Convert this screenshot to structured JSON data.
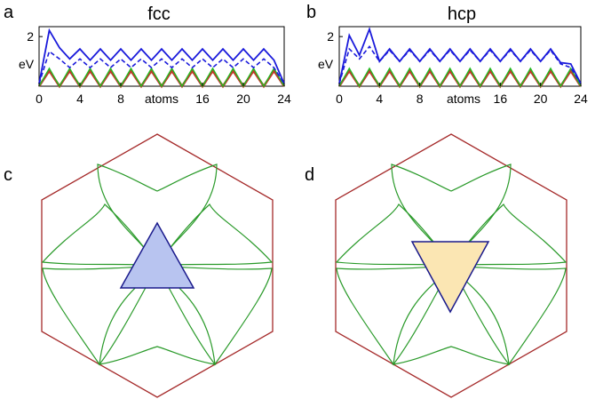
{
  "figure": {
    "panels": {
      "a": {
        "letter": "a"
      },
      "b": {
        "letter": "b"
      },
      "c": {
        "letter": "c"
      },
      "d": {
        "letter": "d"
      }
    }
  },
  "chart_data": [
    {
      "type": "line",
      "panel": "a",
      "title": "fcc",
      "xlabel": "atoms",
      "ylabel": "eV",
      "xlim": [
        0,
        24
      ],
      "ylim": [
        0,
        2.4
      ],
      "x_ticks": [
        "0",
        "4",
        "8",
        "16",
        "20",
        "24"
      ],
      "x_tick_values": [
        0,
        4,
        8,
        16,
        20,
        24
      ],
      "y_ticks": [
        "2"
      ],
      "y_tick_values": [
        2
      ],
      "colors": {
        "blue": "#1a1adb",
        "green": "#22bb22",
        "red": "#c0392b",
        "orange": "#d35400"
      },
      "series": [
        {
          "style": "blue-solid",
          "x": [
            0,
            1,
            2,
            3,
            4,
            5,
            6,
            7,
            8,
            9,
            10,
            11,
            12,
            13,
            14,
            15,
            16,
            17,
            18,
            19,
            20,
            21,
            22,
            23,
            24
          ],
          "values": [
            0.1,
            2.25,
            1.55,
            1.1,
            1.5,
            1.05,
            1.5,
            1.05,
            1.5,
            1.05,
            1.5,
            1.05,
            1.5,
            1.05,
            1.5,
            1.05,
            1.5,
            1.05,
            1.5,
            1.05,
            1.5,
            1.05,
            1.5,
            1.05,
            0.1
          ]
        },
        {
          "style": "blue-dashed",
          "x": [
            0,
            1,
            2,
            3,
            4,
            5,
            6,
            7,
            8,
            9,
            10,
            11,
            12,
            13,
            14,
            15,
            16,
            17,
            18,
            19,
            20,
            21,
            22,
            23,
            24
          ],
          "values": [
            0.1,
            1.4,
            1.1,
            0.75,
            1.1,
            0.75,
            1.1,
            0.75,
            1.1,
            0.75,
            1.1,
            0.75,
            1.1,
            0.75,
            1.1,
            0.75,
            1.1,
            0.75,
            1.1,
            0.75,
            1.1,
            0.75,
            1.1,
            0.75,
            0.1
          ]
        },
        {
          "style": "green",
          "x": [
            0,
            1,
            2,
            3,
            4,
            5,
            6,
            7,
            8,
            9,
            10,
            11,
            12,
            13,
            14,
            15,
            16,
            17,
            18,
            19,
            20,
            21,
            22,
            23,
            24
          ],
          "values": [
            0,
            0.72,
            0,
            0.72,
            0,
            0.72,
            0,
            0.72,
            0,
            0.72,
            0,
            0.72,
            0,
            0.72,
            0,
            0.72,
            0,
            0.72,
            0,
            0.72,
            0,
            0.72,
            0,
            0.72,
            0
          ]
        },
        {
          "style": "red",
          "x": [
            0,
            1,
            2,
            3,
            4,
            5,
            6,
            7,
            8,
            9,
            10,
            11,
            12,
            13,
            14,
            15,
            16,
            17,
            18,
            19,
            20,
            21,
            22,
            23,
            24
          ],
          "values": [
            0,
            0.62,
            0,
            0.62,
            0,
            0.62,
            0,
            0.62,
            0,
            0.62,
            0,
            0.62,
            0,
            0.62,
            0,
            0.62,
            0,
            0.62,
            0,
            0.62,
            0,
            0.62,
            0,
            0.62,
            0
          ]
        }
      ]
    },
    {
      "type": "line",
      "panel": "b",
      "title": "hcp",
      "xlabel": "atoms",
      "ylabel": "eV",
      "xlim": [
        0,
        24
      ],
      "ylim": [
        0,
        2.4
      ],
      "x_ticks": [
        "0",
        "4",
        "8",
        "16",
        "20",
        "24"
      ],
      "x_tick_values": [
        0,
        4,
        8,
        16,
        20,
        24
      ],
      "y_ticks": [
        "2"
      ],
      "y_tick_values": [
        2
      ],
      "colors": {
        "blue": "#1a1adb",
        "green": "#22bb22",
        "red": "#c0392b",
        "orange": "#d35400"
      },
      "series": [
        {
          "style": "blue-solid",
          "x": [
            0,
            1,
            2,
            3,
            4,
            5,
            6,
            7,
            8,
            9,
            10,
            11,
            12,
            13,
            14,
            15,
            16,
            17,
            18,
            19,
            20,
            21,
            22,
            23,
            24
          ],
          "values": [
            0.1,
            2.05,
            1.25,
            2.3,
            1.0,
            1.5,
            1.0,
            1.5,
            1.0,
            1.5,
            1.0,
            1.5,
            1.0,
            1.5,
            1.0,
            1.5,
            1.0,
            1.5,
            1.0,
            1.5,
            1.0,
            1.5,
            0.95,
            0.9,
            0.1
          ]
        },
        {
          "style": "blue-dashed",
          "x": [
            0,
            1,
            2,
            3,
            4,
            5,
            6,
            7,
            8,
            9,
            10,
            11,
            12,
            13,
            14,
            15,
            16,
            17,
            18,
            19,
            20,
            21,
            22,
            23,
            24
          ],
          "values": [
            0.1,
            1.5,
            1.1,
            1.6,
            1.0,
            1.45,
            1.0,
            1.45,
            1.0,
            1.45,
            1.0,
            1.45,
            1.0,
            1.45,
            1.0,
            1.45,
            1.0,
            1.45,
            1.0,
            1.45,
            1.0,
            1.45,
            0.9,
            0.75,
            0.1
          ]
        },
        {
          "style": "green",
          "x": [
            0,
            1,
            2,
            3,
            4,
            5,
            6,
            7,
            8,
            9,
            10,
            11,
            12,
            13,
            14,
            15,
            16,
            17,
            18,
            19,
            20,
            21,
            22,
            23,
            24
          ],
          "values": [
            0,
            0.72,
            0,
            0.72,
            0,
            0.72,
            0,
            0.72,
            0,
            0.72,
            0,
            0.72,
            0,
            0.72,
            0,
            0.72,
            0,
            0.72,
            0,
            0.72,
            0,
            0.72,
            0,
            0.72,
            0
          ]
        },
        {
          "style": "red",
          "x": [
            0,
            1,
            2,
            3,
            4,
            5,
            6,
            7,
            8,
            9,
            10,
            11,
            12,
            13,
            14,
            15,
            16,
            17,
            18,
            19,
            20,
            21,
            22,
            23,
            24
          ],
          "values": [
            0,
            0.62,
            0,
            0.62,
            0,
            0.62,
            0,
            0.62,
            0,
            0.62,
            0,
            0.62,
            0,
            0.62,
            0,
            0.62,
            0,
            0.62,
            0,
            0.62,
            0,
            0.62,
            0,
            0.62,
            0
          ]
        }
      ]
    }
  ],
  "diagrams": {
    "c": {
      "triangle": "up",
      "triangle_fill": "#b8c4f0",
      "triangle_stroke": "#1a1a8c",
      "hexagon_color": "#a52a2a",
      "petal_color": "#2a9a2a"
    },
    "d": {
      "triangle": "down",
      "triangle_fill": "#fbe6b3",
      "triangle_stroke": "#1a1a8c",
      "hexagon_color": "#a52a2a",
      "petal_color": "#2a9a2a"
    }
  }
}
